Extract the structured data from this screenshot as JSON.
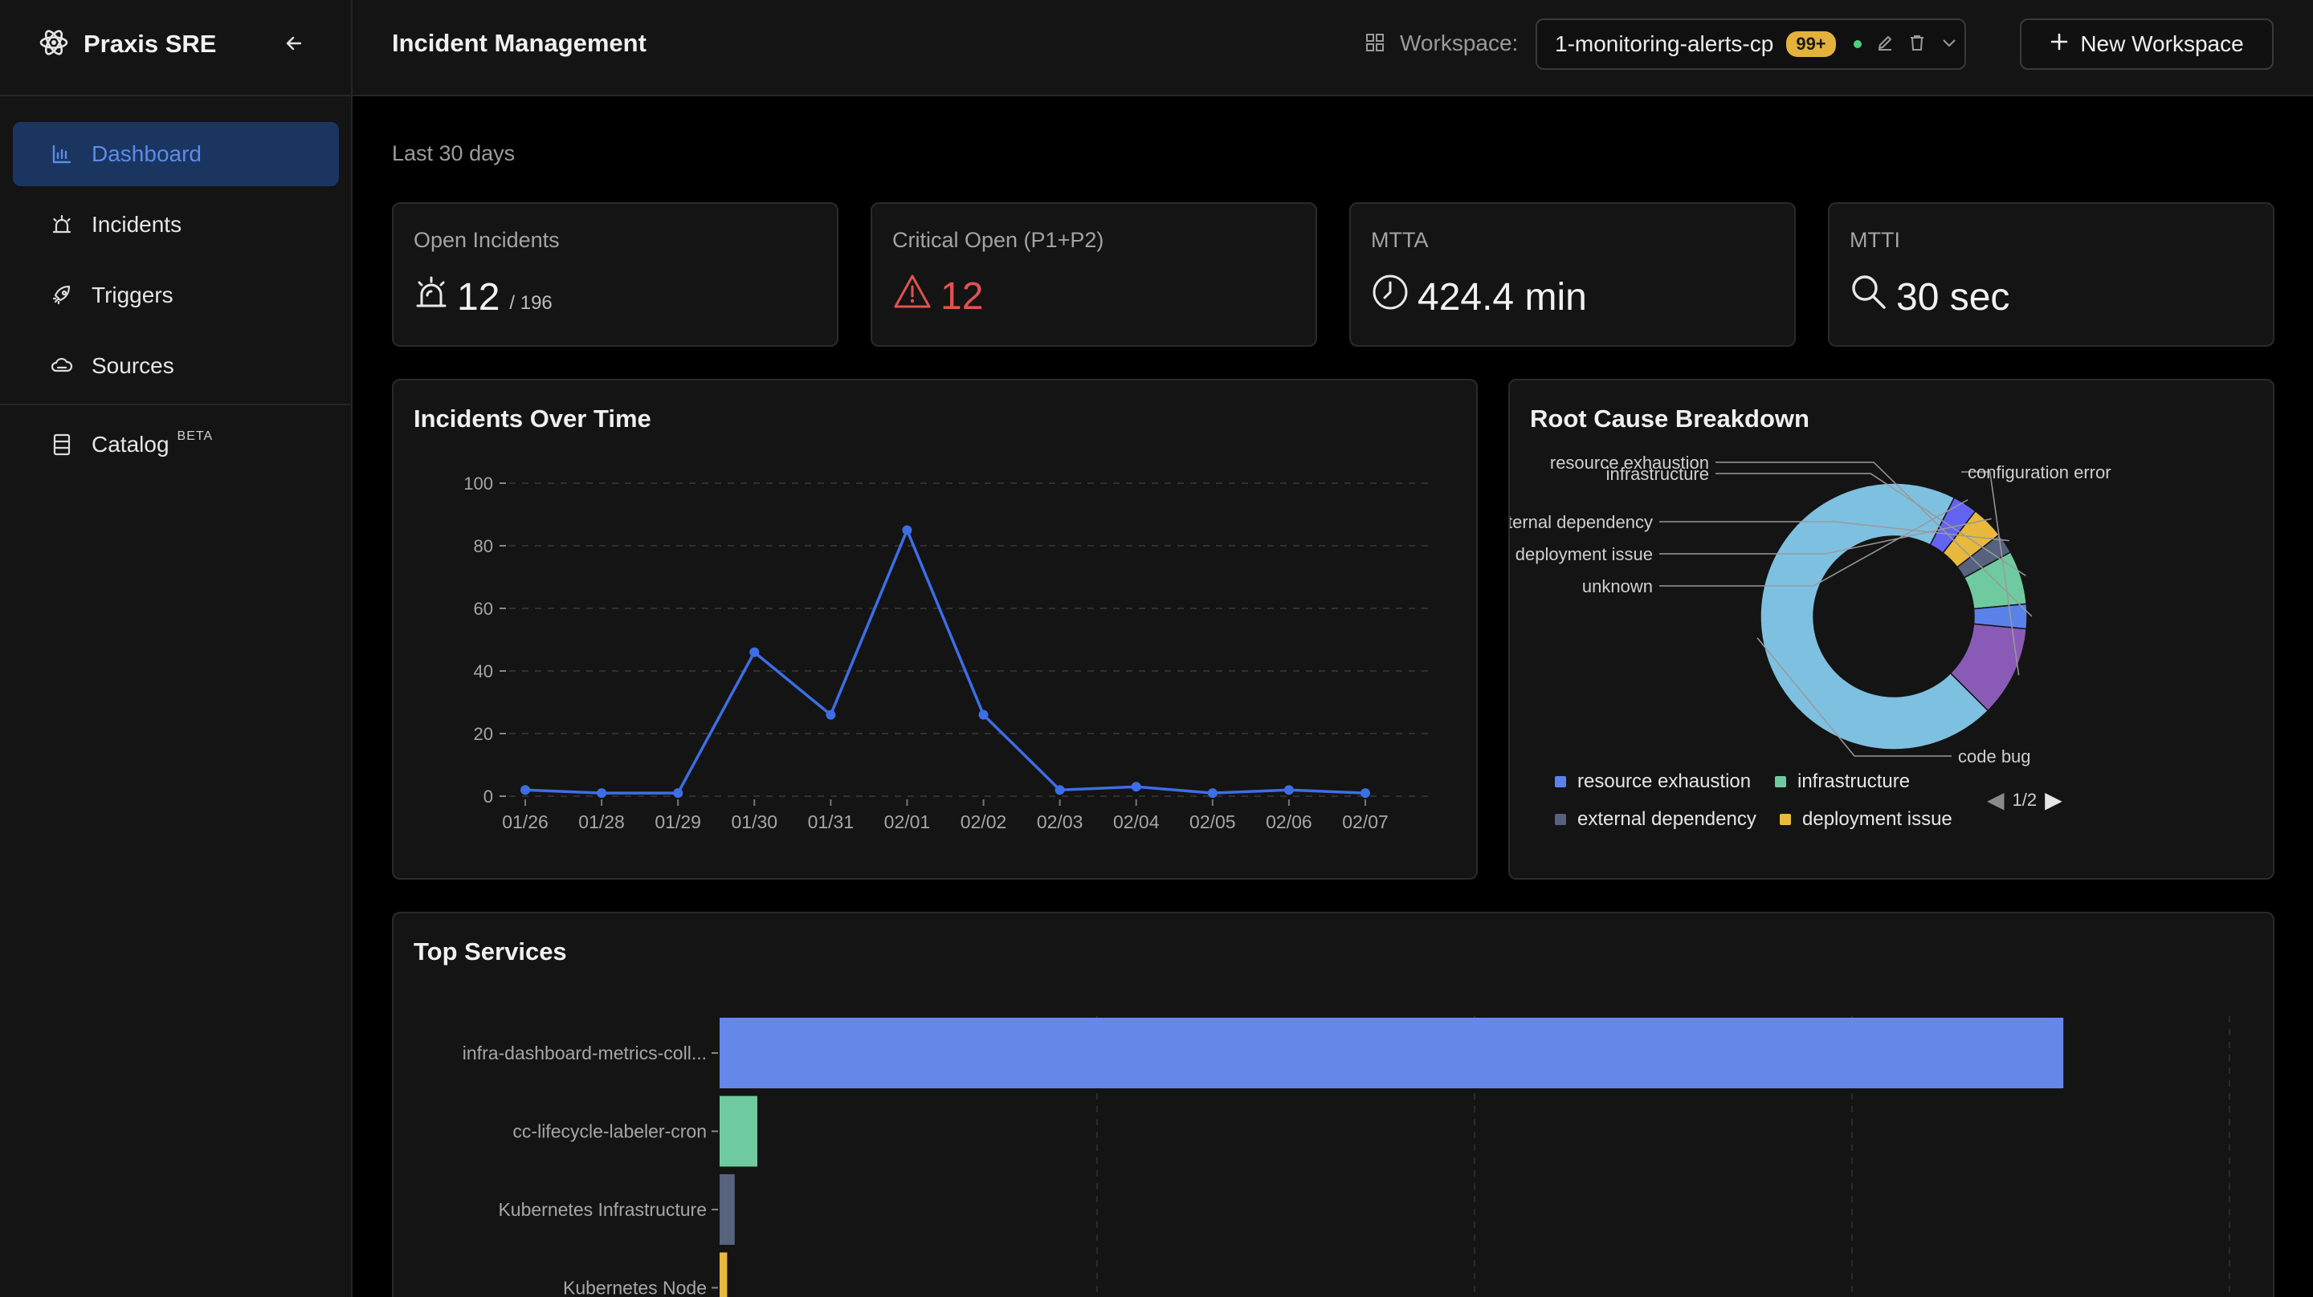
{
  "app": {
    "name": "Praxis SRE"
  },
  "sidebar": {
    "items": [
      {
        "label": "Dashboard",
        "active": true,
        "icon": "bar-chart-icon"
      },
      {
        "label": "Incidents",
        "icon": "alarm-icon"
      },
      {
        "label": "Triggers",
        "icon": "rocket-icon"
      },
      {
        "label": "Sources",
        "icon": "cloud-icon"
      }
    ],
    "catalog": {
      "label": "Catalog",
      "badge": "BETA",
      "icon": "catalog-icon"
    }
  },
  "header": {
    "title": "Incident Management",
    "workspace_label": "Workspace:",
    "workspace_name": "1-monitoring-alerts-cp",
    "workspace_badge": "99+",
    "new_workspace_label": "New Workspace"
  },
  "range_label": "Last 30 days",
  "stats": {
    "open": {
      "label": "Open Incidents",
      "value": "12",
      "total": "/ 196",
      "icon": "alarm-icon"
    },
    "critical": {
      "label": "Critical Open (P1+P2)",
      "value": "12",
      "icon": "warning-icon"
    },
    "mtta": {
      "label": "MTTA",
      "value": "424.4 min",
      "icon": "clock-icon"
    },
    "mtti": {
      "label": "MTTI",
      "value": "30 sec",
      "icon": "search-icon"
    }
  },
  "colors": {
    "accent": "#3b6fe0",
    "line": "#3d6ee6",
    "critical": "#e0524f",
    "card_bg": "#141414"
  },
  "chart_data": [
    {
      "type": "line",
      "title": "Incidents Over Time",
      "x": [
        "01/26",
        "01/28",
        "01/29",
        "01/30",
        "01/31",
        "02/01",
        "02/02",
        "02/03",
        "02/04",
        "02/05",
        "02/06",
        "02/07"
      ],
      "values": [
        2,
        1,
        1,
        46,
        26,
        85,
        26,
        2,
        3,
        1,
        2,
        1
      ],
      "ylim": [
        0,
        100
      ],
      "yticks": [
        0,
        20,
        40,
        60,
        80,
        100
      ],
      "grid": "horizontal-dashed"
    },
    {
      "type": "pie",
      "title": "Root Cause Breakdown",
      "donut": true,
      "slices": [
        {
          "label": "code bug",
          "value": 70,
          "color": "#7ec0e0"
        },
        {
          "label": "unknown",
          "value": 3,
          "color": "#6363f2"
        },
        {
          "label": "deployment issue",
          "value": 4,
          "color": "#e8b93d"
        },
        {
          "label": "external dependency",
          "value": 2.5,
          "color": "#56627e"
        },
        {
          "label": "infrastructure",
          "value": 6.5,
          "color": "#6fcaa0"
        },
        {
          "label": "resource exhaustion",
          "value": 3,
          "color": "#5b82ea"
        },
        {
          "label": "configuration error",
          "value": 11,
          "color": "#8a5bb6"
        }
      ],
      "legend": {
        "placement": "bottom",
        "items": [
          {
            "label": "resource exhaustion",
            "color": "#5b82ea"
          },
          {
            "label": "infrastructure",
            "color": "#6fcaa0"
          },
          {
            "label": "external dependency",
            "color": "#56627e"
          },
          {
            "label": "deployment issue",
            "color": "#e8b93d"
          }
        ],
        "page": "1/2"
      }
    },
    {
      "type": "bar",
      "orientation": "horizontal",
      "title": "Top Services",
      "categories": [
        "infra-dashboard-metrics-coll...",
        "cc-lifecycle-labeler-cron",
        "Kubernetes Infrastructure",
        "Kubernetes Node"
      ],
      "values": [
        178,
        5,
        2,
        1
      ],
      "colors": [
        "#6487e8",
        "#6fcaa0",
        "#56627e",
        "#e8b93d"
      ],
      "xlim": [
        0,
        200
      ],
      "grid": "vertical-dashed"
    }
  ]
}
